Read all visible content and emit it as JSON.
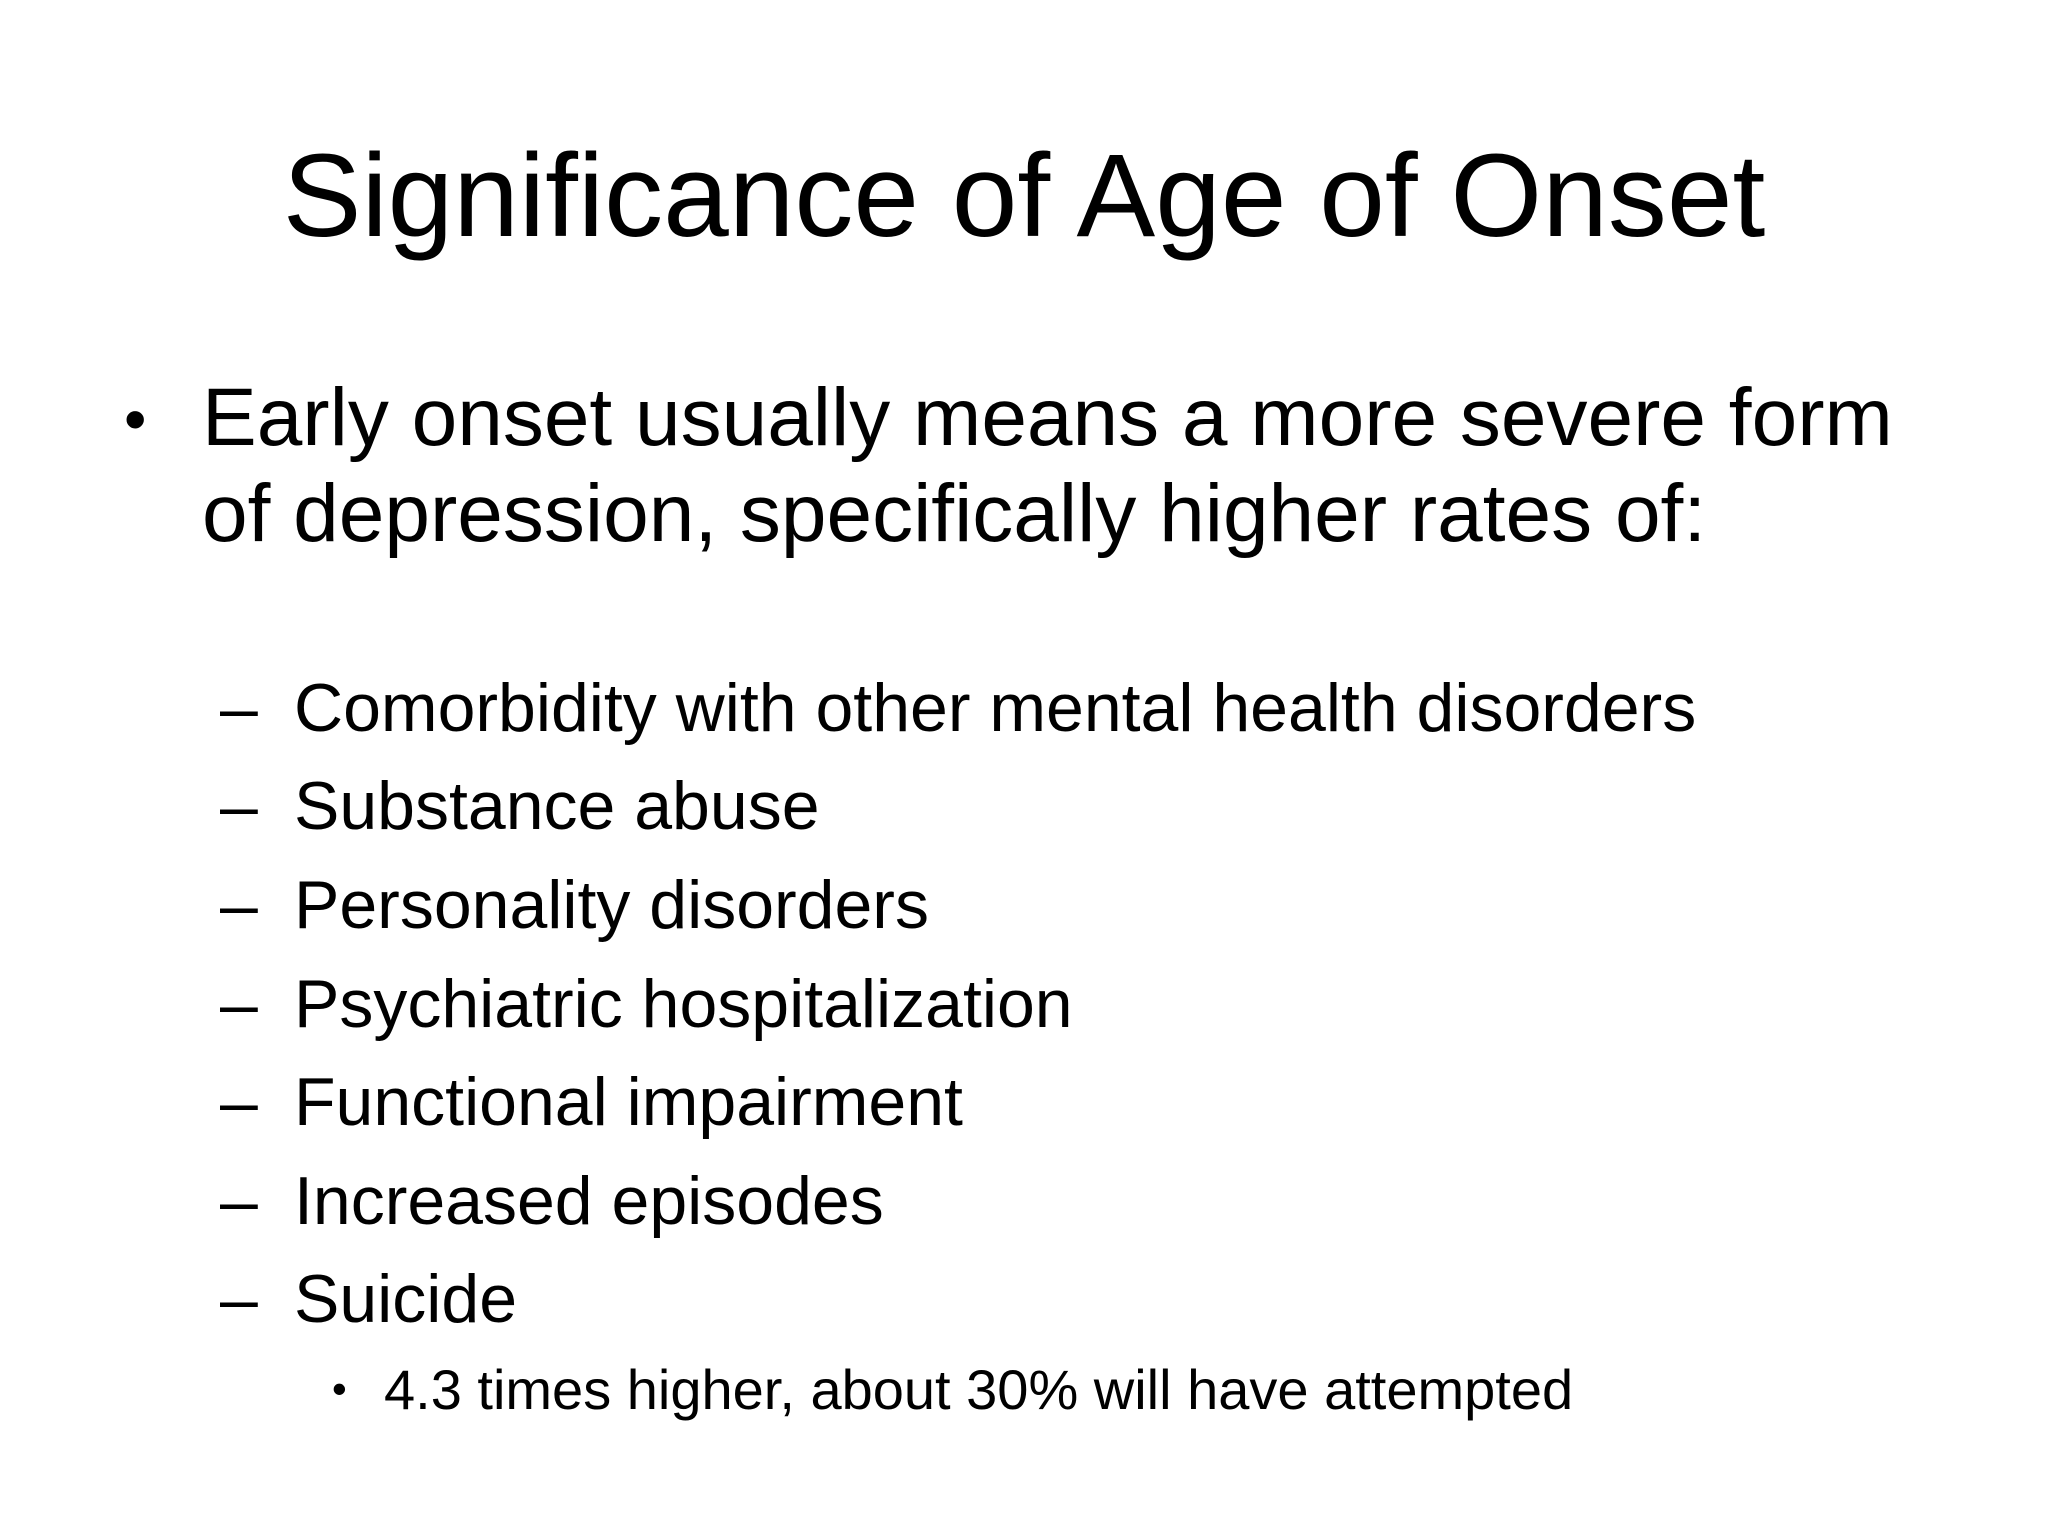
{
  "slide": {
    "title": "Significance of Age of Onset",
    "bullet": {
      "marker": "•",
      "text": "Early onset usually means a more severe form of depression, specifically higher rates of:"
    },
    "sub_dash": "–",
    "sub_items": [
      "Comorbidity with other mental health disorders",
      "Substance abuse",
      "Personality disorders",
      "Psychiatric hospitalization",
      "Functional impairment",
      "Increased episodes",
      "Suicide"
    ],
    "sub_sub_item": {
      "marker": "•",
      "text": "4.3 times higher, about 30% will have attempted"
    }
  }
}
